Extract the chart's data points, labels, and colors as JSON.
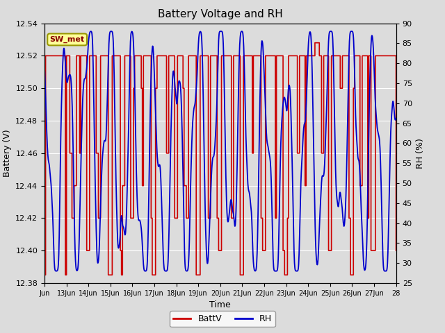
{
  "title": "Battery Voltage and RH",
  "xlabel": "Time",
  "ylabel_left": "Battery (V)",
  "ylabel_right": "RH (%)",
  "legend_label_batt": "BattV",
  "legend_label_rh": "RH",
  "annotation_text": "SW_met",
  "ylim_left": [
    12.38,
    12.54
  ],
  "ylim_right": [
    25,
    90
  ],
  "yticks_left": [
    12.38,
    12.4,
    12.42,
    12.44,
    12.46,
    12.48,
    12.5,
    12.52,
    12.54
  ],
  "yticks_right": [
    25,
    30,
    35,
    40,
    45,
    50,
    55,
    60,
    65,
    70,
    75,
    80,
    85,
    90
  ],
  "color_batt": "#cc0000",
  "color_rh": "#0000cc",
  "background_color": "#dcdcdc",
  "plot_bg_color": "#dcdcdc",
  "fig_bg_color": "#dcdcdc",
  "annotation_facecolor": "#ffff99",
  "annotation_edgecolor": "#999900",
  "x_start": 12.0,
  "x_end": 28.0,
  "xtick_positions": [
    12,
    13,
    14,
    15,
    16,
    17,
    18,
    19,
    20,
    21,
    22,
    23,
    24,
    25,
    26,
    27,
    28
  ],
  "xtick_labels": [
    "Jun",
    "13Jun",
    "14Jun",
    "15Jun",
    "16Jun",
    "17Jun",
    "18Jun",
    "19Jun",
    "20Jun",
    "21Jun",
    "22Jun",
    "23Jun",
    "24Jun",
    "25Jun",
    "26Jun",
    "27Jun",
    "28"
  ]
}
